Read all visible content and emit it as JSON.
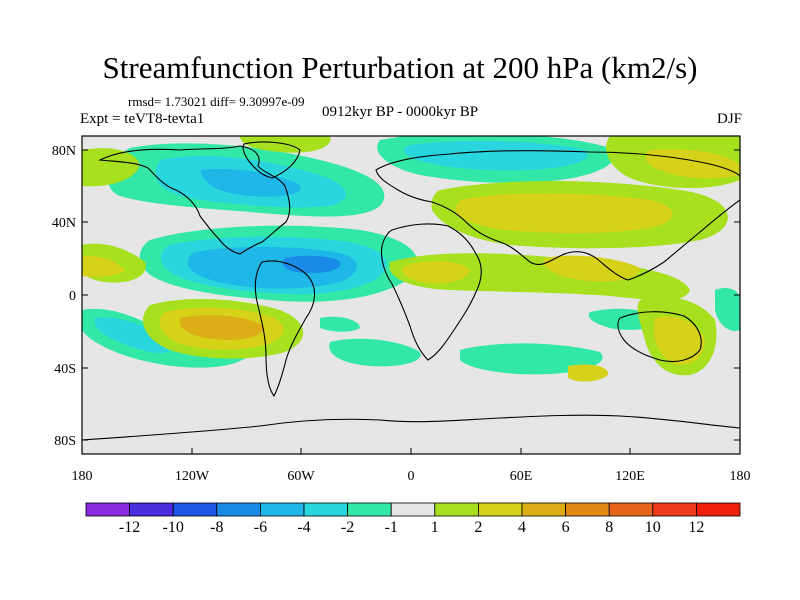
{
  "title": "Streamfunction Perturbation at 200 hPa (km2/s)",
  "stats": "rmsd= 1.73021 diff= 9.30997e-09",
  "experiment": "Expt = teVT8-tevta1",
  "period": "0912kyr BP - 0000kyr BP",
  "season": "DJF",
  "lat_labels": [
    "80N",
    "40N",
    "0",
    "40S",
    "80S"
  ],
  "lon_labels": [
    "180",
    "120W",
    "60W",
    "0",
    "60E",
    "120E",
    "180"
  ],
  "colorbar": {
    "labels": [
      "-12",
      "-10",
      "-8",
      "-6",
      "-4",
      "-2",
      "-1",
      "1",
      "2",
      "4",
      "6",
      "8",
      "10",
      "12"
    ],
    "colors": [
      "#8a2be2",
      "#4b2ee0",
      "#1e56e6",
      "#1a8ae8",
      "#1fb6e8",
      "#2ad6de",
      "#33e8a6",
      "#e6e6e6",
      "#a6e01e",
      "#d6d21a",
      "#dcae16",
      "#e08a14",
      "#e8641a",
      "#ec3a1a",
      "#f0200f"
    ]
  },
  "map_colors": {
    "background": "#e6e6e6",
    "neg1": "#33e8a6",
    "neg2": "#2ad6de",
    "neg3": "#1fb6e8",
    "neg4": "#1a8ae8",
    "pos1": "#a6e01e",
    "pos2": "#d6d21a",
    "pos3": "#dcae16"
  }
}
